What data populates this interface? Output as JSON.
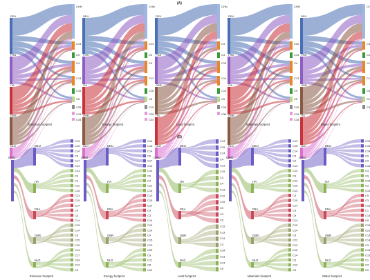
{
  "panel_a": {
    "label": "(A)",
    "panels": [
      {
        "title": "Emission footprint",
        "sources": [
          "DEU",
          "FRA",
          "ITA",
          "GBR",
          "NLD"
        ],
        "targets": [
          "CHN",
          "C14",
          "C9",
          "C4",
          "C13",
          "C16",
          "C5",
          "C25",
          "C15",
          "C34"
        ]
      },
      {
        "title": "Energy footprint",
        "sources": [
          "DEU",
          "FRA",
          "ITA",
          "GBR",
          "NLD"
        ],
        "targets": [
          "CHN",
          "C14",
          "C9",
          "C4",
          "C13",
          "C16",
          "C5",
          "C15",
          "C25",
          "C34"
        ]
      },
      {
        "title": "Land footprint",
        "sources": [
          "DEU",
          "FRA",
          "GBR",
          "ITA",
          "NLD"
        ],
        "targets": [
          "CHN",
          "C4",
          "C3",
          "C15",
          "C14",
          "C13",
          "C5",
          "C16",
          "C34"
        ]
      },
      {
        "title": "Materials footprint",
        "sources": [
          "DEU",
          "FRA",
          "ITA",
          "GBR",
          "NLD"
        ],
        "targets": [
          "CHN",
          "C32",
          "C14",
          "C4",
          "C13",
          "C9",
          "C5",
          "C15",
          "C16",
          "C34"
        ]
      },
      {
        "title": "Water footprint",
        "sources": [
          "DEU",
          "FRA",
          "GBR",
          "ITA",
          "NLD"
        ],
        "targets": [
          "CHN",
          "C4",
          "C14",
          "C13",
          "C16",
          "C5",
          "C10",
          "C34"
        ]
      }
    ]
  },
  "panel_b": {
    "label": "(B)",
    "panels": [
      {
        "title": "Emission footprint",
        "root": "CHN",
        "countries": [
          "DEU",
          "ITA",
          "FRA",
          "GBR",
          "NLD"
        ],
        "sectors": [
          "C13",
          "C15",
          "C14",
          "C9",
          "C17",
          "C13",
          "C14",
          "C9",
          "C4",
          "C12",
          "C15",
          "C13",
          "C15",
          "C14",
          "C9",
          "C3",
          "C14",
          "C15",
          "C14",
          "C9",
          "C25",
          "C15",
          "C13",
          "C17",
          "C34",
          "C12",
          "C3"
        ]
      },
      {
        "title": "Energy footprint",
        "root": "CHN",
        "countries": [
          "DEU",
          "ITA",
          "FRA",
          "GBR",
          "NLD"
        ],
        "sectors": [
          "C13",
          "C15",
          "C14",
          "C9",
          "C17",
          "C13",
          "C14",
          "C9",
          "C4",
          "C12",
          "C15",
          "C13",
          "C15",
          "C14",
          "C9",
          "C3",
          "C14",
          "C15",
          "C14",
          "C9",
          "C15",
          "C13",
          "C25",
          "C9",
          "C17",
          "C8",
          "C12"
        ]
      },
      {
        "title": "Land footprint",
        "root": "CHN",
        "countries": [
          "DEU",
          "ITA",
          "FRA",
          "GBR",
          "NLD"
        ],
        "sectors": [
          "C13",
          "C15",
          "C14",
          "C4",
          "C13",
          "C15",
          "C3",
          "C4",
          "C13",
          "C12",
          "C15",
          "C9",
          "C3",
          "C9",
          "C15",
          "C13",
          "C14",
          "C3",
          "C34",
          "C13",
          "C14",
          "C9"
        ]
      },
      {
        "title": "Materials footprint",
        "root": "CHN",
        "countries": [
          "DEU",
          "ITA",
          "FRA",
          "GBR",
          "NLD"
        ],
        "sectors": [
          "C13",
          "C15",
          "C14",
          "C9",
          "C2",
          "C13",
          "C14",
          "C9",
          "C12",
          "C15",
          "C13",
          "C3",
          "C15",
          "C14",
          "C3",
          "C9",
          "C14",
          "C15",
          "C14",
          "C9",
          "C22",
          "C13",
          "C15",
          "C14",
          "C3",
          "C12",
          "C9"
        ]
      },
      {
        "title": "Water footprint",
        "root": "CHN",
        "countries": [
          "DEU",
          "ITA",
          "FRA",
          "GBR",
          "NLD"
        ],
        "sectors": [
          "C13",
          "C15",
          "C14",
          "C9",
          "C3",
          "C13",
          "C4",
          "C9",
          "C15",
          "C3",
          "C13",
          "C9",
          "C3",
          "C15",
          "C1",
          "C14",
          "C9",
          "C15",
          "C22",
          "C13",
          "C14",
          "C3",
          "C15",
          "C13",
          "C1",
          "C3",
          "C9"
        ]
      }
    ]
  },
  "colors": {
    "DEU": "#4a6fb5",
    "FRA": "#8e5fc2",
    "ITA": "#c8323a",
    "GBR": "#8a5a45",
    "NLD": "#d96fd0",
    "CHN": "#9fb7e3",
    "c_orange": "#e8872a",
    "c_green": "#3a9a3a",
    "c_lightgreen": "#b9d98a",
    "c_gray": "#8c8c8c",
    "c_pink": "#e79ad9",
    "b_purple": "#6b5bc4",
    "b_green": "#8db358",
    "b_red": "#c9495a",
    "b_olive": "#9aa06a"
  }
}
